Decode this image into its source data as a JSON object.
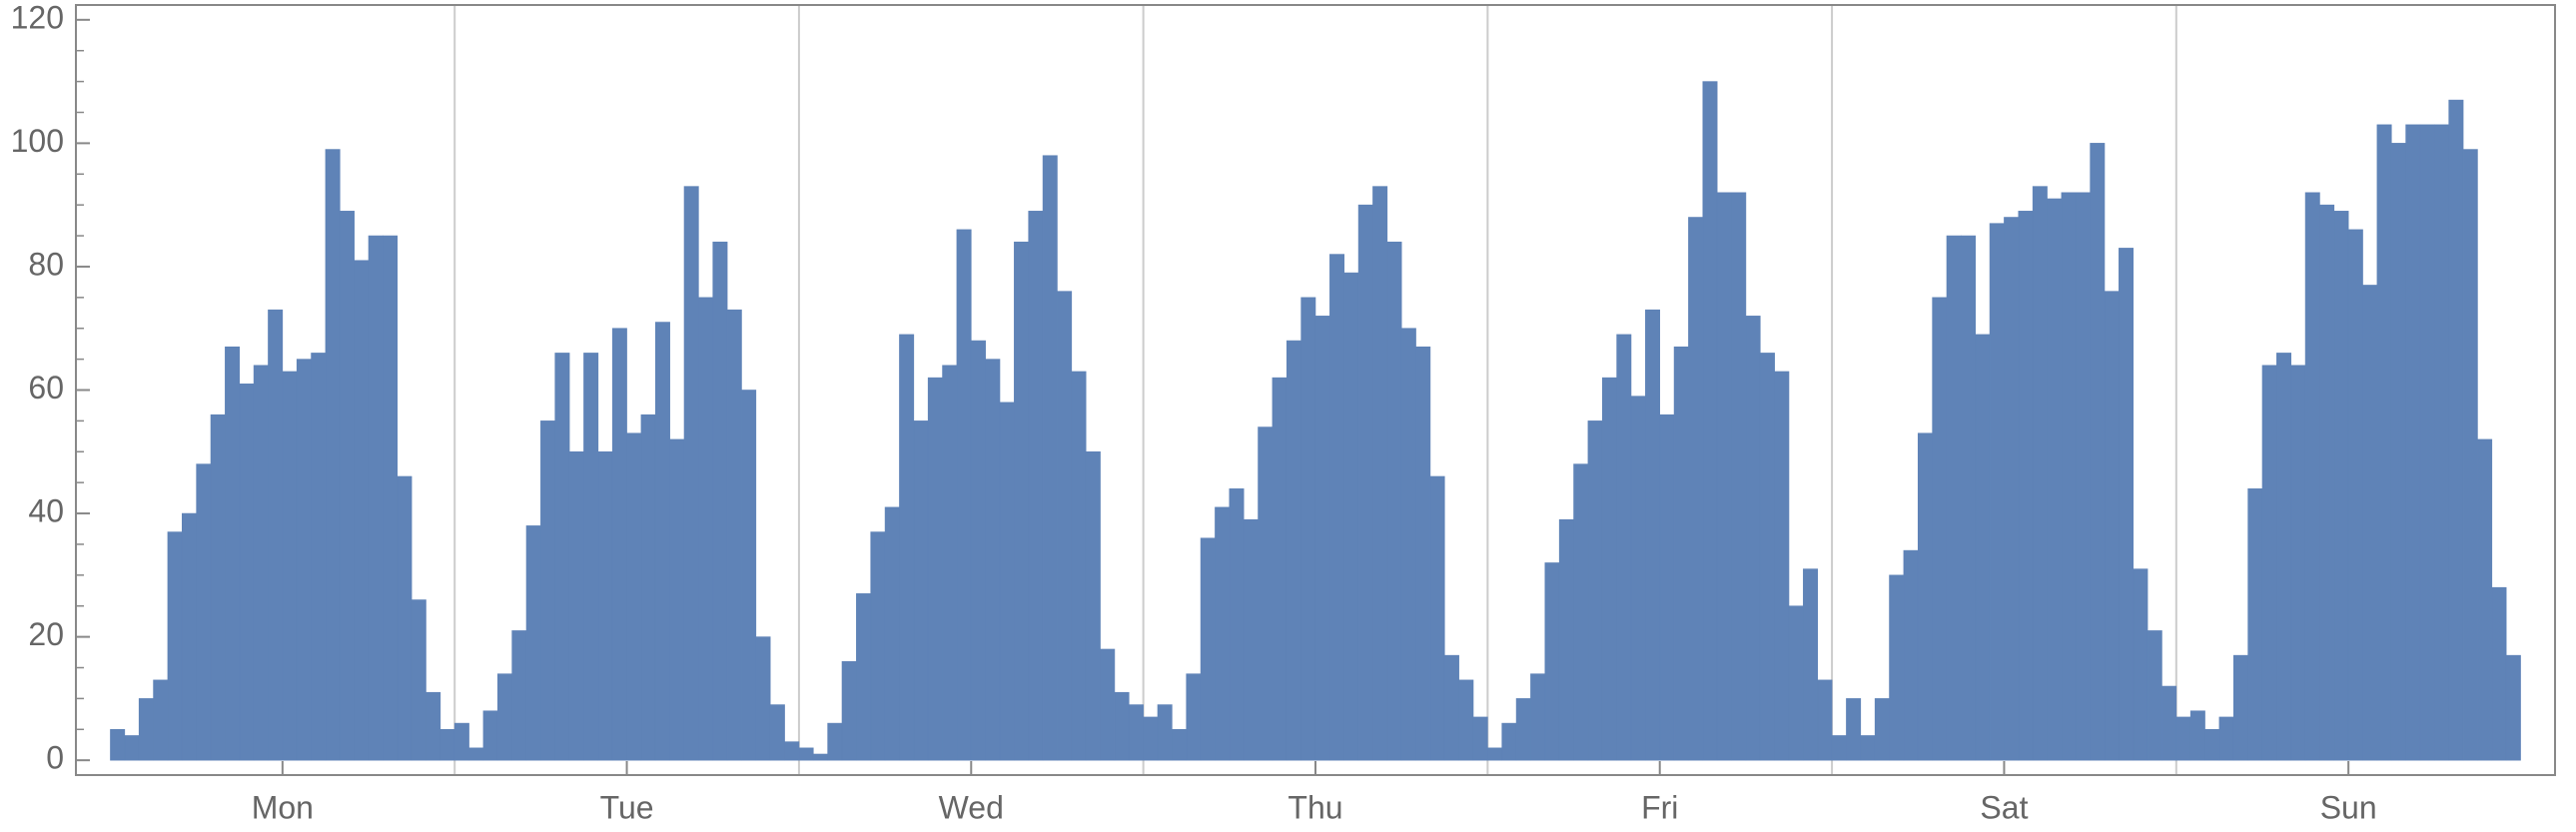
{
  "chart_data": {
    "type": "histogram",
    "color": "#5f83b7",
    "bins": [
      0,
      1,
      2,
      3,
      4,
      5,
      6,
      7,
      8,
      9,
      10,
      11,
      12,
      13,
      14,
      15,
      16,
      17,
      18,
      19,
      20,
      21,
      22,
      23,
      24,
      25,
      26,
      27,
      28,
      29,
      30,
      31,
      32,
      33,
      34,
      35,
      36,
      37,
      38,
      39,
      40,
      41,
      42,
      43,
      44,
      45,
      46,
      47,
      48,
      49,
      50,
      51,
      52,
      53,
      54,
      55,
      56,
      57,
      58,
      59,
      60,
      61,
      62,
      63,
      64,
      65,
      66,
      67,
      68,
      69,
      70,
      71,
      72,
      73,
      74,
      75,
      76,
      77,
      78,
      79,
      80,
      81,
      82,
      83,
      84,
      85,
      86,
      87,
      88,
      89,
      90,
      91,
      92,
      93,
      94,
      95,
      96,
      97,
      98,
      99,
      100,
      101,
      102,
      103,
      104,
      105,
      106,
      107,
      108,
      109,
      110,
      111,
      112,
      113,
      114,
      115,
      116,
      117,
      118,
      119,
      120,
      121,
      122,
      123,
      124,
      125,
      126,
      127,
      128,
      129,
      130,
      131,
      132,
      133,
      134,
      135,
      136,
      137,
      138,
      139,
      140,
      141,
      142,
      143,
      144,
      145,
      146,
      147,
      148,
      149,
      150,
      151,
      152,
      153,
      154,
      155,
      156,
      157,
      158,
      159,
      160,
      161,
      162,
      163,
      164,
      165,
      166,
      167,
      168
    ],
    "values": [
      5,
      4,
      10,
      13,
      37,
      40,
      48,
      56,
      67,
      61,
      64,
      73,
      63,
      65,
      66,
      99,
      89,
      81,
      85,
      85,
      46,
      26,
      11,
      5,
      6,
      2,
      8,
      14,
      21,
      38,
      55,
      66,
      50,
      66,
      50,
      70,
      53,
      56,
      71,
      52,
      93,
      75,
      84,
      73,
      60,
      20,
      9,
      3,
      2,
      1,
      6,
      16,
      27,
      37,
      41,
      69,
      55,
      62,
      64,
      86,
      68,
      65,
      58,
      84,
      89,
      98,
      76,
      63,
      50,
      18,
      11,
      9,
      7,
      9,
      5,
      14,
      36,
      41,
      44,
      39,
      54,
      62,
      68,
      75,
      72,
      82,
      79,
      90,
      93,
      84,
      70,
      67,
      46,
      17,
      13,
      7,
      2,
      6,
      10,
      14,
      32,
      39,
      48,
      55,
      62,
      69,
      59,
      73,
      56,
      67,
      88,
      110,
      92,
      92,
      72,
      66,
      63,
      25,
      31,
      13,
      4,
      10,
      4,
      10,
      30,
      34,
      53,
      75,
      85,
      85,
      69,
      87,
      88,
      89,
      93,
      91,
      92,
      92,
      100,
      76,
      83,
      31,
      21,
      12,
      7,
      8,
      5,
      7,
      17,
      44,
      64,
      66,
      64,
      92,
      90,
      89,
      86,
      77,
      103,
      100,
      103,
      103,
      103,
      107,
      99,
      52,
      28,
      17
    ],
    "xlim": [
      -2.4,
      170.4
    ],
    "xticks": [
      {
        "value": 12,
        "label": "Mon"
      },
      {
        "value": 36,
        "label": "Tue"
      },
      {
        "value": 60,
        "label": "Wed"
      },
      {
        "value": 84,
        "label": "Thu"
      },
      {
        "value": 108,
        "label": "Fri"
      },
      {
        "value": 132,
        "label": "Sat"
      },
      {
        "value": 156,
        "label": "Sun"
      }
    ],
    "xgrid": [
      24,
      48,
      72,
      96,
      120,
      144
    ],
    "ylim": [
      -2.4,
      122.4
    ],
    "yticks": [
      0,
      20,
      40,
      60,
      80,
      100,
      120
    ],
    "yminorticks": [
      5,
      10,
      15,
      25,
      30,
      35,
      45,
      50,
      55,
      65,
      70,
      75,
      85,
      90,
      95,
      105,
      110,
      115
    ]
  }
}
